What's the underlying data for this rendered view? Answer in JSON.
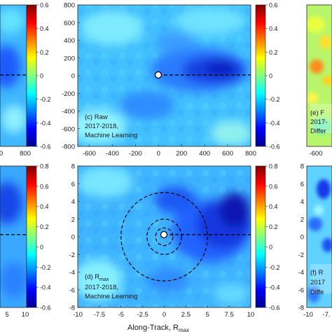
{
  "chart_data": [
    {
      "type": "heatmap",
      "panel": "left-partial-top",
      "colorbar": {
        "ticks": [
          0.6,
          0.4,
          0.2,
          0,
          -0.2,
          -0.4,
          -0.6
        ]
      },
      "x_ticks": [
        "00",
        "800"
      ],
      "reference_line_y": 0
    },
    {
      "type": "heatmap",
      "panel": "c",
      "annotation": [
        "(c) Raw",
        "2017-2018,",
        "Machine Learning"
      ],
      "xlim": [
        -700,
        800
      ],
      "ylim": [
        -800,
        800
      ],
      "x_ticks": [
        -600,
        -400,
        -200,
        0,
        200,
        400,
        600,
        800
      ],
      "y_ticks": [
        800,
        600,
        400,
        200,
        0,
        -200,
        -400,
        -600,
        -800
      ],
      "center_marker": [
        0,
        0
      ],
      "colorbar": {
        "range": [
          -0.6,
          0.6
        ],
        "ticks": [
          0.6,
          0.4,
          0.2,
          0,
          -0.2,
          -0.4,
          -0.6
        ]
      },
      "feature": "minimum centered near x=300, y=0; reference dashed line y=0 for x>0"
    },
    {
      "type": "heatmap",
      "panel": "right-partial-top",
      "annotation": [
        "(e) F",
        "2017-",
        "Differ"
      ],
      "x_ticks": [
        "-600"
      ]
    },
    {
      "type": "heatmap",
      "panel": "left-partial-bottom",
      "x_ticks": [
        "5",
        "10"
      ],
      "colorbar": {
        "ticks": [
          0.8,
          0.6,
          0.4,
          0.2,
          0,
          -0.2,
          -0.4,
          -0.6
        ]
      }
    },
    {
      "type": "heatmap",
      "panel": "d",
      "annotation": [
        "(d) R",
        "max",
        "2017-2018,",
        "Machine Learning"
      ],
      "xlabel": "Along-Track, R",
      "xlabel_sub": "max",
      "xlim": [
        -10,
        10
      ],
      "ylim": [
        -8,
        8
      ],
      "x_ticks": [
        "-10",
        "-7.5",
        "-5",
        "-2.5",
        "0",
        "2.5",
        "5",
        "7.5",
        "10"
      ],
      "y_ticks": [
        8,
        6,
        4,
        2,
        0,
        -2,
        -4,
        -6,
        -8
      ],
      "center_marker": [
        0,
        0
      ],
      "circle_radii": [
        1,
        2,
        5
      ],
      "colorbar": {
        "range": [
          -0.6,
          0.8
        ],
        "ticks": [
          0.8,
          0.6,
          0.4,
          0.2,
          0,
          -0.2,
          -0.4,
          -0.6
        ]
      }
    },
    {
      "type": "heatmap",
      "panel": "right-partial-bottom",
      "annotation": [
        "(f) R",
        "2017",
        "Diffe"
      ],
      "y_ticks": [
        8,
        6,
        4,
        2,
        0,
        -2,
        -4,
        -6,
        -8
      ],
      "x_ticks": [
        "-10",
        "-7."
      ]
    }
  ]
}
